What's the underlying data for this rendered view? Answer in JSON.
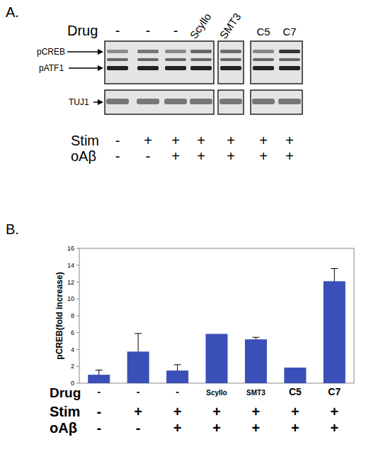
{
  "blot": {
    "label": "A.",
    "drug_label": "Drug",
    "drugs": [
      "-",
      "-",
      "-",
      "Scyllo",
      "SMT3",
      "C5",
      "C7"
    ],
    "bands": [
      "pCREB",
      "pATF1"
    ],
    "loading_control": "TUJ1",
    "rows": [
      {
        "name": "Stim",
        "labels": [
          "-",
          "+",
          "+",
          "+",
          "+",
          "+",
          "+"
        ]
      },
      {
        "name": "oAβ",
        "labels": [
          "-",
          "-",
          "+",
          "+",
          "+",
          "+",
          "+"
        ]
      }
    ]
  },
  "chart_data": {
    "type": "bar",
    "panel_label": "B.",
    "y_label": "pCREB(fold increase)",
    "x_label": "Drug",
    "categories": [
      "-",
      "-",
      "-",
      "Scyllo",
      "SMT3",
      "C5",
      "C7"
    ],
    "values": [
      1.0,
      3.75,
      1.5,
      5.85,
      5.2,
      1.85,
      12.1
    ],
    "errors": [
      0.55,
      2.15,
      0.7,
      null,
      0.25,
      null,
      1.5
    ],
    "x_label_rows": [
      {
        "name": "Stim",
        "labels": [
          "-",
          "+",
          "+",
          "+",
          "+",
          "+",
          "+"
        ]
      },
      {
        "name": "oAβ",
        "labels": [
          "-",
          "-",
          "+",
          "+",
          "+",
          "+",
          "+"
        ]
      }
    ],
    "color": "#3a50b8",
    "ylim": [
      0,
      16
    ],
    "yticks": [
      0,
      2,
      4,
      6,
      8,
      10,
      12,
      14,
      16
    ],
    "grid": false
  }
}
